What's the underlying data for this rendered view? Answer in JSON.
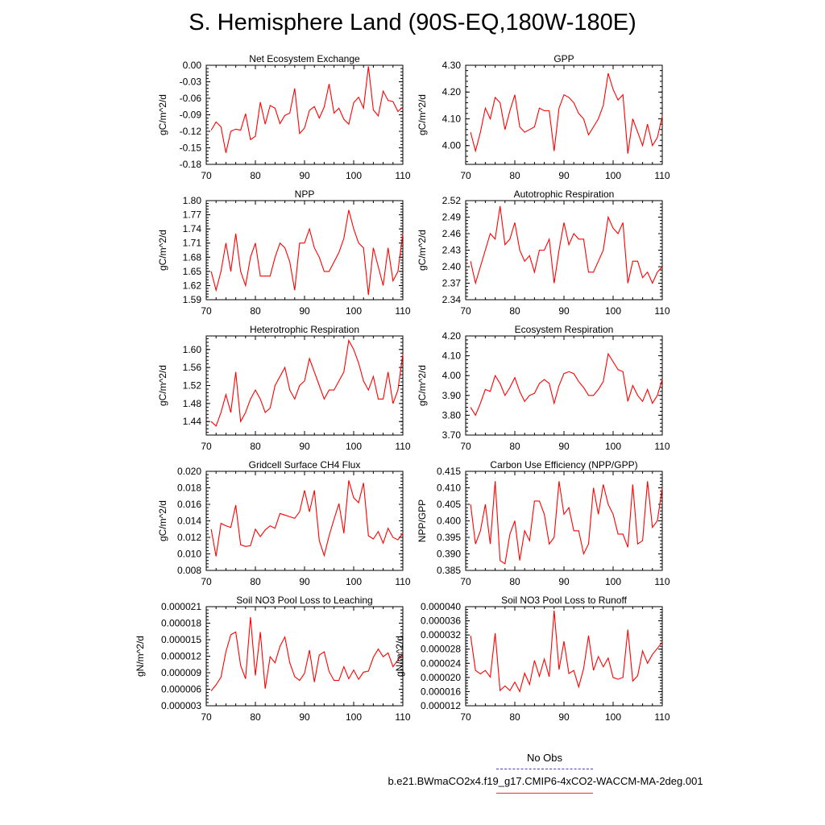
{
  "page": {
    "title": "S. Hemisphere Land (90S-EQ,180W-180E)"
  },
  "legend": {
    "obs_label": "No Obs",
    "model_label": "b.e21.BWmaCO2x4.f19_g17.CMIP6-4xCO2-WACCM-MA-2deg.001",
    "model_color": "#ff0000",
    "obs_color": "#5040c0"
  },
  "chart_data": [
    {
      "type": "line",
      "title": "Net Ecosystem Exchange",
      "ylabel": "gC/m^2/d",
      "xlim": [
        70,
        110
      ],
      "ylim": [
        -0.18,
        0.0
      ],
      "xticks": [
        70,
        80,
        90,
        100,
        110
      ],
      "xtick_labels": [
        "70",
        "80",
        "90",
        "100",
        "110"
      ],
      "yticks": [
        0.0,
        -0.03,
        -0.06,
        -0.09,
        -0.12,
        -0.15,
        -0.18
      ],
      "ytick_labels": [
        "0.00",
        "-0.03",
        "-0.06",
        "-0.09",
        "-0.12",
        "-0.15",
        "-0.18"
      ],
      "x_start": 71,
      "color": "#ff0000",
      "values": [
        -0.118,
        -0.103,
        -0.112,
        -0.159,
        -0.12,
        -0.116,
        -0.118,
        -0.088,
        -0.135,
        -0.129,
        -0.067,
        -0.107,
        -0.073,
        -0.078,
        -0.106,
        -0.091,
        -0.087,
        -0.042,
        -0.124,
        -0.114,
        -0.082,
        -0.075,
        -0.096,
        -0.076,
        -0.034,
        -0.087,
        -0.078,
        -0.098,
        -0.107,
        -0.068,
        -0.058,
        -0.078,
        -0.002,
        -0.081,
        -0.092,
        -0.047,
        -0.064,
        -0.066,
        -0.084,
        -0.076
      ]
    },
    {
      "type": "line",
      "title": "GPP",
      "ylabel": "gC/m^2/d",
      "xlim": [
        70,
        110
      ],
      "ylim": [
        3.93,
        4.3
      ],
      "xticks": [
        70,
        80,
        90,
        100,
        110
      ],
      "xtick_labels": [
        "70",
        "80",
        "90",
        "100",
        "110"
      ],
      "yticks": [
        4.3,
        4.2,
        4.1,
        4.0
      ],
      "ytick_labels": [
        "4.30",
        "4.20",
        "4.10",
        "4.00"
      ],
      "x_start": 71,
      "color": "#ff0000",
      "values": [
        4.05,
        3.98,
        4.05,
        4.14,
        4.1,
        4.18,
        4.16,
        4.06,
        4.13,
        4.19,
        4.07,
        4.05,
        4.06,
        4.07,
        4.14,
        4.13,
        4.13,
        3.98,
        4.14,
        4.19,
        4.18,
        4.16,
        4.12,
        4.1,
        4.04,
        4.07,
        4.1,
        4.15,
        4.27,
        4.21,
        4.17,
        4.19,
        3.97,
        4.1,
        4.05,
        4.0,
        4.08,
        4.0,
        4.03,
        4.11
      ]
    },
    {
      "type": "line",
      "title": "NPP",
      "ylabel": "gC/m^2/d",
      "xlim": [
        70,
        110
      ],
      "ylim": [
        1.59,
        1.8
      ],
      "xticks": [
        70,
        80,
        90,
        100,
        110
      ],
      "xtick_labels": [
        "70",
        "80",
        "90",
        "100",
        "110"
      ],
      "yticks": [
        1.8,
        1.77,
        1.74,
        1.71,
        1.68,
        1.65,
        1.62,
        1.59
      ],
      "ytick_labels": [
        "1.80",
        "1.77",
        "1.74",
        "1.71",
        "1.68",
        "1.65",
        "1.62",
        "1.59"
      ],
      "x_start": 71,
      "color": "#ff0000",
      "values": [
        1.65,
        1.61,
        1.65,
        1.71,
        1.65,
        1.73,
        1.65,
        1.62,
        1.68,
        1.71,
        1.64,
        1.64,
        1.64,
        1.68,
        1.71,
        1.7,
        1.67,
        1.61,
        1.71,
        1.71,
        1.74,
        1.7,
        1.68,
        1.65,
        1.65,
        1.67,
        1.69,
        1.72,
        1.78,
        1.74,
        1.71,
        1.7,
        1.6,
        1.7,
        1.66,
        1.62,
        1.7,
        1.63,
        1.65,
        1.73
      ]
    },
    {
      "type": "line",
      "title": "Autotrophic Respiration",
      "ylabel": "gC/m^2/d",
      "xlim": [
        70,
        110
      ],
      "ylim": [
        2.34,
        2.52
      ],
      "xticks": [
        70,
        80,
        90,
        100,
        110
      ],
      "xtick_labels": [
        "70",
        "80",
        "90",
        "100",
        "110"
      ],
      "yticks": [
        2.52,
        2.49,
        2.46,
        2.43,
        2.4,
        2.37,
        2.34
      ],
      "ytick_labels": [
        "2.52",
        "2.49",
        "2.46",
        "2.43",
        "2.40",
        "2.37",
        "2.34"
      ],
      "x_start": 71,
      "color": "#ff0000",
      "values": [
        2.41,
        2.37,
        2.4,
        2.43,
        2.46,
        2.45,
        2.51,
        2.44,
        2.45,
        2.48,
        2.43,
        2.41,
        2.42,
        2.39,
        2.43,
        2.43,
        2.45,
        2.37,
        2.43,
        2.48,
        2.44,
        2.46,
        2.45,
        2.45,
        2.39,
        2.39,
        2.41,
        2.43,
        2.49,
        2.47,
        2.46,
        2.48,
        2.37,
        2.41,
        2.41,
        2.38,
        2.39,
        2.37,
        2.39,
        2.4
      ]
    },
    {
      "type": "line",
      "title": "Heterotrophic Respiration",
      "ylabel": "gC/m^2/d",
      "xlim": [
        70,
        110
      ],
      "ylim": [
        1.41,
        1.63
      ],
      "xticks": [
        70,
        80,
        90,
        100,
        110
      ],
      "xtick_labels": [
        "70",
        "80",
        "90",
        "100",
        "110"
      ],
      "yticks": [
        1.6,
        1.56,
        1.52,
        1.48,
        1.44
      ],
      "ytick_labels": [
        "1.60",
        "1.56",
        "1.52",
        "1.48",
        "1.44"
      ],
      "x_start": 71,
      "color": "#ff0000",
      "values": [
        1.44,
        1.43,
        1.46,
        1.5,
        1.46,
        1.55,
        1.44,
        1.46,
        1.49,
        1.51,
        1.49,
        1.46,
        1.47,
        1.52,
        1.54,
        1.56,
        1.51,
        1.49,
        1.52,
        1.53,
        1.58,
        1.55,
        1.52,
        1.49,
        1.51,
        1.51,
        1.53,
        1.55,
        1.62,
        1.6,
        1.57,
        1.53,
        1.51,
        1.54,
        1.49,
        1.49,
        1.55,
        1.48,
        1.51,
        1.59
      ]
    },
    {
      "type": "line",
      "title": "Ecosystem Respiration",
      "ylabel": "gC/m^2/d",
      "xlim": [
        70,
        110
      ],
      "ylim": [
        3.7,
        4.2
      ],
      "xticks": [
        70,
        80,
        90,
        100,
        110
      ],
      "xtick_labels": [
        "70",
        "80",
        "90",
        "100",
        "110"
      ],
      "yticks": [
        4.2,
        4.1,
        4.0,
        3.9,
        3.8,
        3.7
      ],
      "ytick_labels": [
        "4.20",
        "4.10",
        "4.00",
        "3.90",
        "3.80",
        "3.70"
      ],
      "x_start": 71,
      "color": "#ff0000",
      "values": [
        3.84,
        3.8,
        3.86,
        3.93,
        3.92,
        4.0,
        3.96,
        3.9,
        3.94,
        3.99,
        3.92,
        3.87,
        3.9,
        3.91,
        3.96,
        3.98,
        3.96,
        3.86,
        3.95,
        4.01,
        4.02,
        4.01,
        3.97,
        3.94,
        3.9,
        3.9,
        3.93,
        3.97,
        4.11,
        4.07,
        4.03,
        4.02,
        3.87,
        3.95,
        3.9,
        3.87,
        3.93,
        3.86,
        3.9,
        3.98
      ]
    },
    {
      "type": "line",
      "title": "Gridcell Surface CH4 Flux",
      "ylabel": "gC/m^2/d",
      "xlim": [
        70,
        110
      ],
      "ylim": [
        0.008,
        0.02
      ],
      "xticks": [
        70,
        80,
        90,
        100,
        110
      ],
      "xtick_labels": [
        "70",
        "80",
        "90",
        "100",
        "110"
      ],
      "yticks": [
        0.02,
        0.018,
        0.016,
        0.014,
        0.012,
        0.01,
        0.008
      ],
      "ytick_labels": [
        "0.020",
        "0.018",
        "0.016",
        "0.014",
        "0.012",
        "0.010",
        "0.008"
      ],
      "x_start": 71,
      "color": "#ff0000",
      "values": [
        0.013,
        0.0097,
        0.0137,
        0.0134,
        0.0132,
        0.0159,
        0.0111,
        0.0109,
        0.011,
        0.013,
        0.0121,
        0.0129,
        0.0134,
        0.0131,
        0.0149,
        0.0147,
        0.0145,
        0.0143,
        0.0151,
        0.0177,
        0.0151,
        0.0177,
        0.0116,
        0.0098,
        0.0122,
        0.0142,
        0.0161,
        0.0125,
        0.0189,
        0.0168,
        0.0162,
        0.0186,
        0.0122,
        0.0118,
        0.0127,
        0.0113,
        0.0131,
        0.012,
        0.0117,
        0.0125
      ]
    },
    {
      "type": "line",
      "title": "Carbon Use Efficiency (NPP/GPP)",
      "ylabel": "NPP/GPP",
      "xlim": [
        70,
        110
      ],
      "ylim": [
        0.385,
        0.415
      ],
      "xticks": [
        70,
        80,
        90,
        100,
        110
      ],
      "xtick_labels": [
        "70",
        "80",
        "90",
        "100",
        "110"
      ],
      "yticks": [
        0.415,
        0.41,
        0.405,
        0.4,
        0.395,
        0.39,
        0.385
      ],
      "ytick_labels": [
        "0.415",
        "0.410",
        "0.405",
        "0.400",
        "0.395",
        "0.390",
        "0.385"
      ],
      "x_start": 71,
      "color": "#ff0000",
      "values": [
        0.405,
        0.393,
        0.397,
        0.405,
        0.393,
        0.412,
        0.388,
        0.387,
        0.396,
        0.4,
        0.388,
        0.397,
        0.394,
        0.406,
        0.406,
        0.402,
        0.393,
        0.395,
        0.412,
        0.402,
        0.404,
        0.397,
        0.397,
        0.39,
        0.393,
        0.41,
        0.402,
        0.411,
        0.405,
        0.402,
        0.396,
        0.396,
        0.392,
        0.411,
        0.393,
        0.394,
        0.412,
        0.398,
        0.4,
        0.41
      ]
    },
    {
      "type": "line",
      "title": "Soil NO3 Pool Loss to Leaching",
      "ylabel": "gN/m^2/d",
      "xlim": [
        70,
        110
      ],
      "ylim": [
        3e-06,
        2.1e-05
      ],
      "xticks": [
        70,
        80,
        90,
        100,
        110
      ],
      "xtick_labels": [
        "70",
        "80",
        "90",
        "100",
        "110"
      ],
      "yticks": [
        2.1e-05,
        1.8e-05,
        1.5e-05,
        1.2e-05,
        9e-06,
        6e-06,
        3e-06
      ],
      "ytick_labels": [
        "0.000021",
        "0.000018",
        "0.000015",
        "0.000012",
        "0.000009",
        "0.000006",
        "0.000003"
      ],
      "x_start": 71,
      "color": "#ff0000",
      "values": [
        5.7e-06,
        6.8e-06,
        8.2e-06,
        1.28e-05,
        1.59e-05,
        1.64e-05,
        1.03e-05,
        7.9e-06,
        1.91e-05,
        8.5e-06,
        1.64e-05,
        6.1e-06,
        1.19e-05,
        1.08e-05,
        1.38e-05,
        1.55e-05,
        1.08e-05,
        8.3e-06,
        7.6e-06,
        8.9e-06,
        1.31e-05,
        7.3e-06,
        1.22e-05,
        1.28e-05,
        9.2e-06,
        7.6e-06,
        7.6e-06,
        1.01e-05,
        7.9e-06,
        9.5e-06,
        7.8e-06,
        9.1e-06,
        9.3e-06,
        1.18e-05,
        1.33e-05,
        1.19e-05,
        1.26e-05,
        1.01e-05,
        1.13e-05,
        1.24e-05
      ]
    },
    {
      "type": "line",
      "title": "Soil NO3 Pool Loss to Runoff",
      "ylabel": "gN/m^2/d",
      "xlim": [
        70,
        110
      ],
      "ylim": [
        1.2e-05,
        4e-05
      ],
      "xticks": [
        70,
        80,
        90,
        100,
        110
      ],
      "xtick_labels": [
        "70",
        "80",
        "90",
        "100",
        "110"
      ],
      "yticks": [
        4e-05,
        3.6e-05,
        3.2e-05,
        2.8e-05,
        2.4e-05,
        2e-05,
        1.6e-05,
        1.2e-05
      ],
      "ytick_labels": [
        "0.000040",
        "0.000036",
        "0.000032",
        "0.000028",
        "0.000024",
        "0.000020",
        "0.000016",
        "0.000012"
      ],
      "x_start": 71,
      "color": "#ff0000",
      "values": [
        3.18e-05,
        2.2e-05,
        2.1e-05,
        2.2e-05,
        2.01e-05,
        3.25e-05,
        1.63e-05,
        1.76e-05,
        1.63e-05,
        1.87e-05,
        1.6e-05,
        2.12e-05,
        1.8e-05,
        2.48e-05,
        2.03e-05,
        2.52e-05,
        2.02e-05,
        3.89e-05,
        2.22e-05,
        3.02e-05,
        2.11e-05,
        2.2e-05,
        1.73e-05,
        2.25e-05,
        3.18e-05,
        2.2e-05,
        2.59e-05,
        2.3e-05,
        2.55e-05,
        2e-05,
        1.95e-05,
        2e-05,
        3.35e-05,
        1.9e-05,
        2.05e-05,
        2.75e-05,
        2.4e-05,
        2.65e-05,
        2.82e-05,
        3e-05
      ]
    }
  ]
}
